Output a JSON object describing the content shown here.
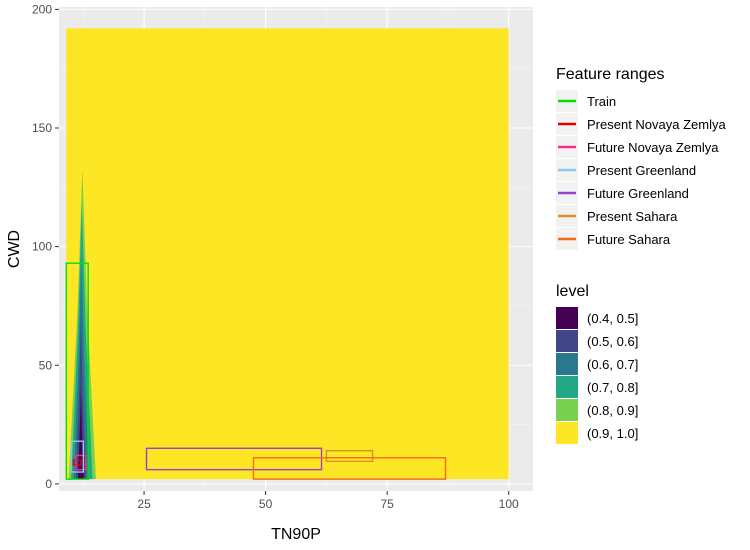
{
  "chart_data": {
    "type": "heatmap",
    "xlabel": "TN90P",
    "ylabel": "CWD",
    "xlim": [
      7.5,
      105
    ],
    "ylim": [
      -3,
      201
    ],
    "x_ticks": [
      25,
      50,
      75,
      100
    ],
    "y_ticks": [
      0,
      50,
      100,
      150,
      200
    ],
    "grid": true,
    "legend_placement": "right",
    "level_legend": {
      "title": "level",
      "entries": [
        {
          "label": "(0.4, 0.5]",
          "color": "#440154"
        },
        {
          "label": "(0.5, 0.6]",
          "color": "#414487"
        },
        {
          "label": "(0.6, 0.7]",
          "color": "#2A788E"
        },
        {
          "label": "(0.7, 0.8]",
          "color": "#22A884"
        },
        {
          "label": "(0.8, 0.9]",
          "color": "#7AD151"
        },
        {
          "label": "(0.9, 1.0]",
          "color": "#FDE725"
        }
      ]
    },
    "background_region": {
      "level": "(0.9, 1.0]",
      "x": [
        9,
        100
      ],
      "y": [
        2,
        192
      ]
    },
    "contour_spikes": [
      {
        "level": "(0.8, 0.9]",
        "x_center": 12.3,
        "half_width": 2.8,
        "y_base": 2,
        "y_top": 133
      },
      {
        "level": "(0.7, 0.8]",
        "x_center": 12.2,
        "half_width": 2.2,
        "y_base": 2,
        "y_top": 118
      },
      {
        "level": "(0.6, 0.7]",
        "x_center": 12.1,
        "half_width": 1.6,
        "y_base": 2,
        "y_top": 95
      },
      {
        "level": "(0.5, 0.6]",
        "x_center": 12.0,
        "half_width": 1.0,
        "y_base": 2,
        "y_top": 70
      },
      {
        "level": "(0.4, 0.5]",
        "x_center": 12.0,
        "half_width": 0.6,
        "y_base": 2,
        "y_top": 40
      }
    ],
    "range_legend": {
      "title": "Feature ranges",
      "entries": [
        {
          "label": "Train",
          "color": "#00E000"
        },
        {
          "label": "Present Novaya Zemlya",
          "color": "#E00000"
        },
        {
          "label": "Future Novaya Zemlya",
          "color": "#F0308C"
        },
        {
          "label": "Present Greenland",
          "color": "#8CC8F0"
        },
        {
          "label": "Future Greenland",
          "color": "#9A40D0"
        },
        {
          "label": "Present Sahara",
          "color": "#D9902A"
        },
        {
          "label": "Future Sahara",
          "color": "#F26A1B"
        }
      ]
    },
    "feature_ranges": [
      {
        "name": "Train",
        "x": [
          9,
          13.5
        ],
        "y": [
          2,
          93
        ]
      },
      {
        "name": "Present Novaya Zemlya",
        "x": [
          10.5,
          12
        ],
        "y": [
          8,
          10
        ]
      },
      {
        "name": "Future Novaya Zemlya",
        "x": [
          11,
          13
        ],
        "y": [
          6,
          12
        ]
      },
      {
        "name": "Present Greenland",
        "x": [
          10,
          12.5
        ],
        "y": [
          5,
          18
        ]
      },
      {
        "name": "Future Greenland",
        "x": [
          25.5,
          61.5
        ],
        "y": [
          6,
          15
        ]
      },
      {
        "name": "Present Sahara",
        "x": [
          62.5,
          72
        ],
        "y": [
          9.5,
          14
        ]
      },
      {
        "name": "Future Sahara",
        "x": [
          47.5,
          87
        ],
        "y": [
          2,
          11
        ]
      }
    ]
  }
}
